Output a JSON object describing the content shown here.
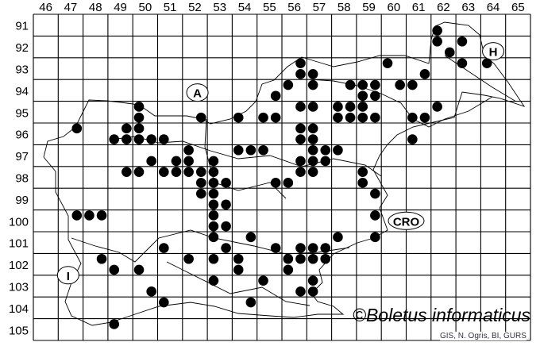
{
  "map": {
    "grid_columns": [
      "46",
      "47",
      "48",
      "49",
      "50",
      "51",
      "52",
      "53",
      "54",
      "55",
      "56",
      "57",
      "58",
      "59",
      "60",
      "61",
      "62",
      "63",
      "64",
      "65"
    ],
    "grid_rows": [
      "91",
      "92",
      "93",
      "94",
      "95",
      "96",
      "97",
      "98",
      "99",
      "100",
      "101",
      "102",
      "103",
      "104",
      "105"
    ],
    "country_labels": [
      {
        "text": "A",
        "col": 52.6,
        "row": 94.6
      },
      {
        "text": "H",
        "col": 64.5,
        "row": 92.7
      },
      {
        "text": "CRO",
        "col": 61.0,
        "row": 100.5
      },
      {
        "text": "I",
        "col": 47.4,
        "row": 103.0
      }
    ],
    "dot_color": "#000000",
    "occurrences": [
      [
        62.25,
        91.75
      ],
      [
        62.25,
        92.25
      ],
      [
        63.25,
        92.25
      ],
      [
        62.75,
        92.75
      ],
      [
        63.25,
        93.25
      ],
      [
        64.25,
        93.25
      ],
      [
        60.25,
        93.25
      ],
      [
        56.75,
        93.25
      ],
      [
        56.75,
        93.75
      ],
      [
        57.25,
        93.75
      ],
      [
        61.75,
        93.75
      ],
      [
        56.25,
        94.25
      ],
      [
        57.25,
        94.25
      ],
      [
        58.75,
        94.25
      ],
      [
        59.25,
        94.25
      ],
      [
        59.75,
        94.25
      ],
      [
        60.75,
        94.25
      ],
      [
        61.25,
        94.25
      ],
      [
        55.75,
        94.75
      ],
      [
        59.25,
        94.75
      ],
      [
        59.75,
        94.75
      ],
      [
        50.25,
        95.25
      ],
      [
        56.75,
        95.25
      ],
      [
        57.25,
        95.25
      ],
      [
        58.25,
        95.25
      ],
      [
        58.75,
        95.25
      ],
      [
        59.25,
        95.25
      ],
      [
        62.25,
        95.25
      ],
      [
        50.25,
        95.75
      ],
      [
        52.75,
        95.75
      ],
      [
        54.25,
        95.75
      ],
      [
        55.25,
        95.75
      ],
      [
        55.75,
        95.75
      ],
      [
        58.25,
        95.75
      ],
      [
        58.75,
        95.75
      ],
      [
        59.25,
        95.75
      ],
      [
        59.75,
        95.75
      ],
      [
        61.25,
        95.75
      ],
      [
        61.75,
        95.75
      ],
      [
        47.75,
        96.25
      ],
      [
        49.75,
        96.25
      ],
      [
        50.25,
        96.25
      ],
      [
        56.75,
        96.25
      ],
      [
        57.25,
        96.25
      ],
      [
        49.25,
        96.75
      ],
      [
        49.75,
        96.75
      ],
      [
        50.25,
        96.75
      ],
      [
        50.75,
        96.75
      ],
      [
        51.25,
        96.75
      ],
      [
        56.75,
        96.75
      ],
      [
        57.25,
        96.75
      ],
      [
        61.25,
        96.75
      ],
      [
        52.25,
        97.25
      ],
      [
        54.25,
        97.25
      ],
      [
        54.75,
        97.25
      ],
      [
        55.25,
        97.25
      ],
      [
        57.25,
        97.25
      ],
      [
        57.75,
        97.25
      ],
      [
        58.25,
        97.25
      ],
      [
        50.75,
        97.75
      ],
      [
        51.75,
        97.75
      ],
      [
        52.25,
        97.75
      ],
      [
        53.25,
        97.75
      ],
      [
        56.75,
        97.75
      ],
      [
        57.25,
        97.75
      ],
      [
        57.75,
        97.75
      ],
      [
        49.75,
        98.25
      ],
      [
        50.25,
        98.25
      ],
      [
        51.25,
        98.25
      ],
      [
        51.75,
        98.25
      ],
      [
        52.25,
        98.25
      ],
      [
        52.75,
        98.25
      ],
      [
        53.25,
        98.25
      ],
      [
        56.75,
        98.25
      ],
      [
        57.25,
        98.25
      ],
      [
        59.25,
        98.25
      ],
      [
        52.75,
        98.75
      ],
      [
        53.25,
        98.75
      ],
      [
        53.75,
        98.75
      ],
      [
        55.75,
        98.75
      ],
      [
        56.25,
        98.75
      ],
      [
        59.25,
        98.75
      ],
      [
        52.75,
        99.25
      ],
      [
        53.25,
        99.25
      ],
      [
        59.75,
        99.25
      ],
      [
        53.25,
        99.75
      ],
      [
        53.75,
        99.75
      ],
      [
        47.75,
        100.25
      ],
      [
        48.25,
        100.25
      ],
      [
        48.75,
        100.25
      ],
      [
        53.25,
        100.25
      ],
      [
        59.75,
        100.25
      ],
      [
        53.25,
        100.75
      ],
      [
        53.75,
        100.75
      ],
      [
        53.25,
        101.25
      ],
      [
        54.75,
        101.25
      ],
      [
        58.25,
        101.25
      ],
      [
        59.75,
        101.25
      ],
      [
        51.25,
        101.75
      ],
      [
        53.75,
        101.75
      ],
      [
        55.75,
        101.75
      ],
      [
        56.75,
        101.75
      ],
      [
        57.25,
        101.75
      ],
      [
        57.75,
        101.75
      ],
      [
        48.75,
        102.25
      ],
      [
        52.25,
        102.25
      ],
      [
        53.25,
        102.25
      ],
      [
        54.25,
        102.25
      ],
      [
        56.25,
        102.25
      ],
      [
        56.75,
        102.25
      ],
      [
        57.25,
        102.25
      ],
      [
        57.75,
        102.25
      ],
      [
        49.25,
        102.75
      ],
      [
        50.25,
        102.75
      ],
      [
        54.25,
        102.75
      ],
      [
        56.25,
        102.75
      ],
      [
        53.25,
        103.25
      ],
      [
        55.25,
        103.25
      ],
      [
        57.25,
        103.25
      ],
      [
        50.75,
        103.75
      ],
      [
        56.75,
        103.75
      ],
      [
        57.25,
        103.75
      ],
      [
        51.25,
        104.25
      ],
      [
        54.75,
        104.25
      ],
      [
        49.25,
        105.25
      ]
    ]
  },
  "copyright": "©Boletus informaticus",
  "source": "GIS, N. Ogris, BI, GURS"
}
